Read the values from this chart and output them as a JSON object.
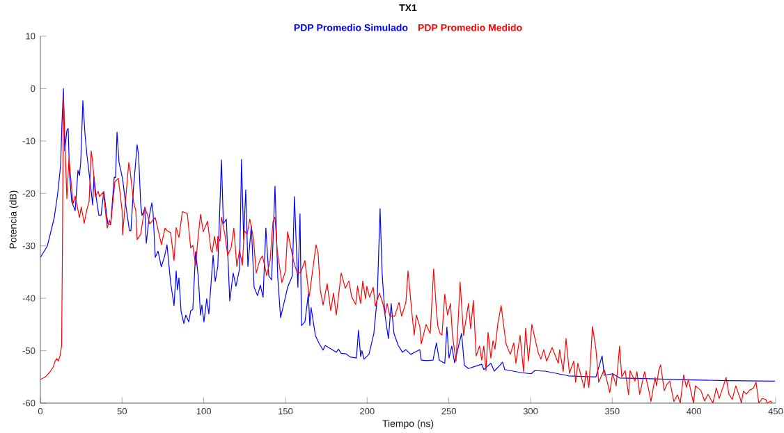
{
  "chart_data": {
    "type": "line",
    "title": "TX1",
    "xlabel": "Tiempo (ns)",
    "ylabel": "Potencia (dB)",
    "xlim": [
      0,
      450
    ],
    "ylim": [
      -60,
      10
    ],
    "xticks": [
      0,
      50,
      100,
      150,
      200,
      250,
      300,
      350,
      400,
      450
    ],
    "yticks": [
      -60,
      -50,
      -40,
      -30,
      -20,
      -10,
      0,
      10
    ],
    "legend": "top",
    "marker": "none",
    "line_style": "solid",
    "series": [
      {
        "name": "PDP Promedio Simulado",
        "color": "#0000ff",
        "x": [
          0,
          4.3,
          8.5,
          10.7,
          12.4,
          13.2,
          14.1,
          14.9,
          16.2,
          17,
          17.9,
          19.2,
          21.3,
          23,
          23.9,
          24.7,
          26,
          27.3,
          28.5,
          30.7,
          32,
          32.8,
          34.1,
          35.8,
          37.1,
          38.8,
          40,
          41.3,
          43,
          45.2,
          46,
          46.9,
          48.1,
          50.3,
          52.4,
          54.5,
          55.4,
          57,
          59.2,
          60.1,
          61.4,
          62.2,
          63.9,
          64.8,
          66.5,
          68.2,
          69,
          70.3,
          72,
          74,
          76,
          77.5,
          79.7,
          81.8,
          83.1,
          83.9,
          84.8,
          86.1,
          87.8,
          89,
          90.8,
          92,
          93.3,
          95,
          96.7,
          98,
          98.8,
          100.1,
          101.8,
          103.1,
          105.7,
          107,
          108.6,
          110.8,
          112,
          113.8,
          115.9,
          118,
          119.7,
          121.9,
          123.1,
          124.4,
          125.7,
          127,
          129.1,
          130.8,
          132.9,
          134.6,
          136.3,
          138,
          139.8,
          141.5,
          143.6,
          145.3,
          147,
          150,
          151.3,
          154.2,
          155.5,
          157.6,
          158.9,
          159.8,
          161.9,
          164,
          164.9,
          165.7,
          168.3,
          170.4,
          173,
          174.3,
          178.5,
          181.1,
          182.4,
          184.1,
          187,
          189.6,
          193.4,
          194.7,
          196,
          196.8,
          198.1,
          201.1,
          204.1,
          206.2,
          207.9,
          209.2,
          210.9,
          213,
          214.7,
          216.4,
          219,
          221.6,
          223.7,
          226.7,
          232.2,
          233.1,
          236.5,
          240.3,
          242.4,
          244.1,
          247.5,
          248.8,
          250.1,
          251.8,
          253.5,
          257.8,
          259.5,
          262,
          268,
          270.1,
          271.4,
          275.7,
          277.8,
          281.2,
          282.9,
          284.2,
          289.3,
          294.8,
          300.4,
          302.5,
          308.9,
          323.4,
          340,
          343.8,
          345.1,
          350.2,
          354.5,
          370,
          388.6,
          420,
          449.5
        ],
        "values": [
          -32.2,
          -30,
          -24.6,
          -19.8,
          -14.5,
          -6.6,
          0,
          -11.9,
          -8,
          -7.6,
          -16.6,
          -21.6,
          -23.3,
          -15.6,
          -16.6,
          -14,
          -2.3,
          -8.7,
          -12.7,
          -18.5,
          -22.2,
          -16.8,
          -20.6,
          -24.2,
          -24.2,
          -19.6,
          -22.6,
          -25.8,
          -25.9,
          -16.9,
          -17,
          -8.3,
          -14,
          -17.2,
          -22.5,
          -27.1,
          -27.1,
          -18.9,
          -10.7,
          -12.7,
          -22,
          -24.2,
          -22.9,
          -29.5,
          -24.6,
          -21.8,
          -23.8,
          -32.2,
          -31,
          -34,
          -32,
          -29.8,
          -37,
          -41.4,
          -34.8,
          -38.4,
          -36.1,
          -42.5,
          -44.8,
          -43.2,
          -44.5,
          -42.4,
          -42.1,
          -31.1,
          -36.1,
          -43.2,
          -41.3,
          -44.5,
          -40.1,
          -43,
          -31.8,
          -36.8,
          -33.9,
          -13.6,
          -25.8,
          -24.9,
          -40.5,
          -35.2,
          -37.7,
          -34.4,
          -13.5,
          -28.8,
          -19.3,
          -33.9,
          -26.2,
          -37.9,
          -39.5,
          -37.5,
          -39.8,
          -26.6,
          -35.7,
          -36.5,
          -18.6,
          -36.1,
          -43.7,
          -39.7,
          -37.9,
          -35.7,
          -20.6,
          -37.9,
          -23.9,
          -45.2,
          -44.5,
          -39.2,
          -45.2,
          -41.8,
          -47.1,
          -48.5,
          -49.9,
          -49,
          -49.8,
          -50.3,
          -49.7,
          -50.5,
          -50.6,
          -51.2,
          -51.4,
          -46.1,
          -51.1,
          -50,
          -51.6,
          -50.7,
          -46.7,
          -39.7,
          -22.9,
          -35.5,
          -43.2,
          -47.7,
          -41,
          -46.7,
          -49,
          -50.3,
          -49.8,
          -50.7,
          -49.8,
          -51.8,
          -51.9,
          -51.8,
          -48.5,
          -51.8,
          -52.4,
          -45.5,
          -51.4,
          -49.1,
          -52.3,
          -46.7,
          -52.8,
          -53.4,
          -52.8,
          -52.6,
          -53.6,
          -52.4,
          -53.9,
          -52.8,
          -52.2,
          -53.6,
          -53.9,
          -54.2,
          -54.4,
          -53.8,
          -53.9,
          -54.8,
          -55,
          -51,
          -54.7,
          -54.4,
          -55.2,
          -55.3,
          -55.5,
          -55.7,
          -55.8
        ]
      },
      {
        "name": "PDP Promedio Medido",
        "color": "#ff0000",
        "x": [
          0,
          3,
          6,
          8,
          9,
          10,
          11,
          12,
          13,
          13.5,
          14.1,
          16.2,
          17.5,
          20,
          21.3,
          23.9,
          25,
          26.8,
          28.5,
          29.8,
          31.1,
          32,
          32.8,
          33.6,
          35.4,
          36.2,
          38.3,
          39.2,
          40.9,
          42.2,
          43,
          44.3,
          45.6,
          47.7,
          50,
          50.3,
          54.1,
          54.9,
          57,
          58.4,
          59.2,
          61.4,
          63.9,
          65.6,
          66.9,
          70.3,
          72,
          74.1,
          76.3,
          77.5,
          79.7,
          81.8,
          83.1,
          84.8,
          86.9,
          89.9,
          92,
          93.3,
          95,
          96.3,
          98,
          99.7,
          102.3,
          104.4,
          105.2,
          106.5,
          108.2,
          108.6,
          109.9,
          110.8,
          112.9,
          114.6,
          116.7,
          118.4,
          120.2,
          121.9,
          123.6,
          124.8,
          126.5,
          128.2,
          130.4,
          132.1,
          134.2,
          135.9,
          137.2,
          138.5,
          140.6,
          142.3,
          143.6,
          144.9,
          147.8,
          150,
          151.3,
          155.1,
          157.2,
          159.3,
          161.9,
          164.5,
          168.7,
          170,
          171.3,
          173,
          175.5,
          177.7,
          179.4,
          181.1,
          184.1,
          186.6,
          188.8,
          190.5,
          193,
          194.1,
          196,
          197.3,
          199,
          199.8,
          201.5,
          203.7,
          205,
          207.5,
          209.6,
          210.9,
          212.2,
          213.9,
          216.9,
          219.5,
          221.1,
          223.7,
          225,
          227.5,
          228.8,
          230.1,
          232.2,
          233.1,
          236,
          238.6,
          240.7,
          242.4,
          243.3,
          244.6,
          245.8,
          247.5,
          249.2,
          251,
          252.2,
          254.4,
          256.9,
          259,
          262,
          263.3,
          265,
          266.7,
          268.8,
          270.1,
          271.4,
          272.7,
          274,
          275.7,
          277,
          278.2,
          280,
          282,
          285,
          287.6,
          289.7,
          291,
          293.6,
          295.7,
          297,
          298.7,
          300.8,
          302.5,
          304.6,
          306.3,
          308.1,
          309.8,
          313.2,
          317,
          317.8,
          320,
          321.7,
          323.8,
          326.4,
          327.6,
          328.9,
          332.8,
          334,
          335.7,
          337.9,
          340,
          341.7,
          345.1,
          348.5,
          350.2,
          352.4,
          354.5,
          355.8,
          357.9,
          360,
          360.9,
          363.9,
          365.1,
          366.8,
          369.8,
          372.4,
          373.7,
          376.2,
          377.1,
          378.4,
          379.6,
          381.8,
          383.5,
          385.2,
          387.7,
          389.9,
          391.6,
          393.7,
          395.4,
          396.6,
          399.7,
          400.9,
          404.3,
          406.5,
          408.6,
          411.6,
          413.7,
          415.4,
          417.1,
          419.7,
          421.4,
          423.5,
          425.6,
          428.2,
          429,
          430.3,
          432,
          434.2,
          436.3,
          438,
          439.7,
          441.8,
          444,
          444.8,
          447,
          447.8
        ],
        "values": [
          -55.5,
          -55,
          -54,
          -53,
          -52,
          -51.5,
          -52,
          -51,
          -49,
          -30,
          -1.3,
          -21,
          -13.3,
          -22,
          -20.5,
          -24.6,
          -22.6,
          -25.7,
          -23,
          -21.6,
          -11.9,
          -14,
          -17.2,
          -20.6,
          -19.6,
          -20.6,
          -19.8,
          -21.6,
          -26.6,
          -25.1,
          -26,
          -21.8,
          -17.8,
          -17.1,
          -23.3,
          -27.9,
          -14.1,
          -15.6,
          -21.6,
          -23.3,
          -28.8,
          -27.8,
          -22.6,
          -24.2,
          -25.8,
          -24.6,
          -26.9,
          -29.8,
          -26.6,
          -27.1,
          -27.5,
          -32.8,
          -26.5,
          -28.4,
          -23.5,
          -23.8,
          -30.4,
          -29.9,
          -33.7,
          -29.1,
          -24,
          -27.3,
          -25.3,
          -30.8,
          -31.3,
          -28.2,
          -31.1,
          -28.2,
          -29.1,
          -24.5,
          -27.8,
          -31.8,
          -30.4,
          -26.6,
          -33.9,
          -30.8,
          -33.7,
          -27.1,
          -27.8,
          -24.9,
          -28.6,
          -35.2,
          -32.8,
          -31.9,
          -33.7,
          -35.7,
          -32.8,
          -25.5,
          -24.5,
          -30.8,
          -37,
          -34.8,
          -27.3,
          -33.1,
          -35.2,
          -35.1,
          -32.8,
          -39.7,
          -29.8,
          -31.5,
          -38.4,
          -41.3,
          -37.2,
          -42.4,
          -39,
          -43.2,
          -35.2,
          -38.1,
          -36.7,
          -39.7,
          -41.2,
          -37.7,
          -41,
          -36.7,
          -40.1,
          -37.7,
          -39.8,
          -37.9,
          -41.5,
          -39,
          -41,
          -43,
          -41,
          -43.4,
          -43.4,
          -40.8,
          -43.4,
          -40.8,
          -34.8,
          -43.2,
          -47,
          -43.2,
          -45.4,
          -48.7,
          -45,
          -46.7,
          -34.4,
          -42.4,
          -45.4,
          -46.7,
          -47,
          -39.2,
          -43.2,
          -41,
          -47.1,
          -52,
          -36.9,
          -47.1,
          -41,
          -45.8,
          -40.4,
          -51,
          -49.1,
          -51.8,
          -49.1,
          -53.8,
          -46.5,
          -51.4,
          -48.1,
          -49.7,
          -44.8,
          -41.4,
          -48.7,
          -50.7,
          -48.5,
          -52.4,
          -47.1,
          -54,
          -45.7,
          -52,
          -45,
          -47.4,
          -50.3,
          -51.6,
          -49.8,
          -52,
          -49.4,
          -52.4,
          -49.8,
          -54,
          -47.7,
          -54.3,
          -52,
          -56,
          -52.4,
          -57.1,
          -53.8,
          -57,
          -45.4,
          -49.7,
          -56,
          -53.6,
          -58,
          -54.3,
          -56.7,
          -49.1,
          -55,
          -53.8,
          -58.4,
          -53.8,
          -55.8,
          -54,
          -58.3,
          -54,
          -57.6,
          -59.7,
          -55.1,
          -56.7,
          -53.8,
          -52.7,
          -57.6,
          -56.4,
          -55.8,
          -59.7,
          -58.4,
          -60,
          -54.6,
          -57,
          -55.5,
          -60,
          -56.7,
          -57.6,
          -59.6,
          -58.3,
          -60,
          -57.1,
          -59.1,
          -57.6,
          -55.1,
          -58.3,
          -59.3,
          -56.7,
          -59,
          -60,
          -57.7,
          -58.3,
          -57.5,
          -57.2,
          -56,
          -60,
          -59.1,
          -59.3,
          -60,
          -59.6,
          -60
        ]
      }
    ]
  }
}
